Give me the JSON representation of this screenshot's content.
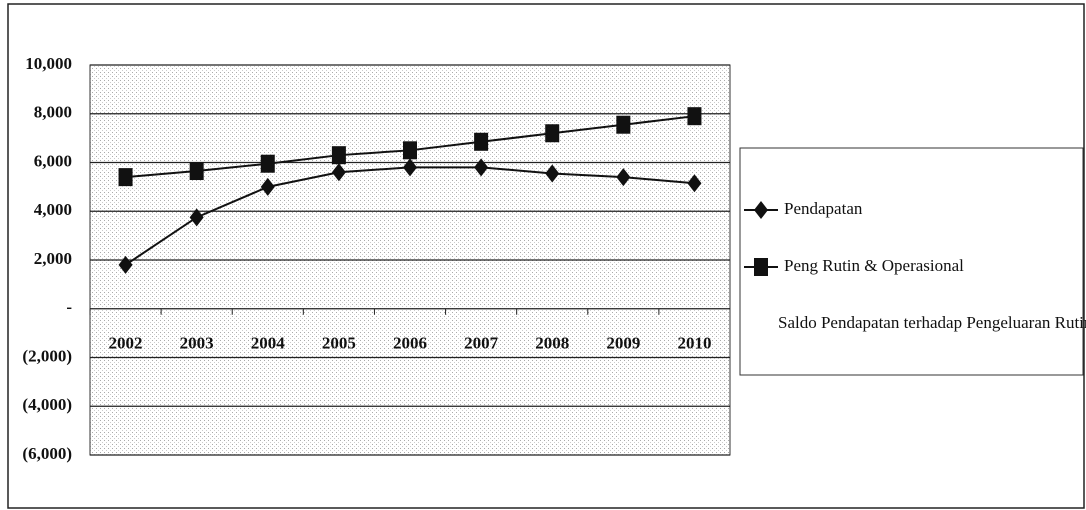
{
  "chart_data": {
    "type": "line",
    "categories": [
      "2002",
      "2003",
      "2004",
      "2005",
      "2006",
      "2007",
      "2008",
      "2009",
      "2010"
    ],
    "series": [
      {
        "name": "Pendapatan",
        "color": "#111111",
        "marker": "diamond",
        "values": [
          1800,
          3750,
          5000,
          5600,
          5800,
          5800,
          5550,
          5400,
          5150
        ]
      },
      {
        "name": "Peng Rutin & Operasional",
        "color": "#111111",
        "marker": "square",
        "values": [
          5400,
          5650,
          5950,
          6300,
          6500,
          6850,
          7200,
          7550,
          7900
        ]
      },
      {
        "name": "Saldo Pendapatan terhadap Pengeluaran Rutin",
        "color": "#111111",
        "marker": "none",
        "values": [
          null,
          null,
          null,
          null,
          null,
          null,
          null,
          null,
          null
        ]
      }
    ],
    "ylim": [
      -6000,
      10000
    ],
    "yticks": [
      {
        "value": 10000,
        "label": "10,000"
      },
      {
        "value": 8000,
        "label": "8,000"
      },
      {
        "value": 6000,
        "label": "6,000"
      },
      {
        "value": 4000,
        "label": "4,000"
      },
      {
        "value": 2000,
        "label": "2,000"
      },
      {
        "value": 0,
        "label": "-"
      },
      {
        "value": -2000,
        "label": "(2,000)"
      },
      {
        "value": -4000,
        "label": "(4,000)"
      },
      {
        "value": -6000,
        "label": "(6,000)"
      }
    ],
    "grid": true,
    "legend": "right"
  }
}
